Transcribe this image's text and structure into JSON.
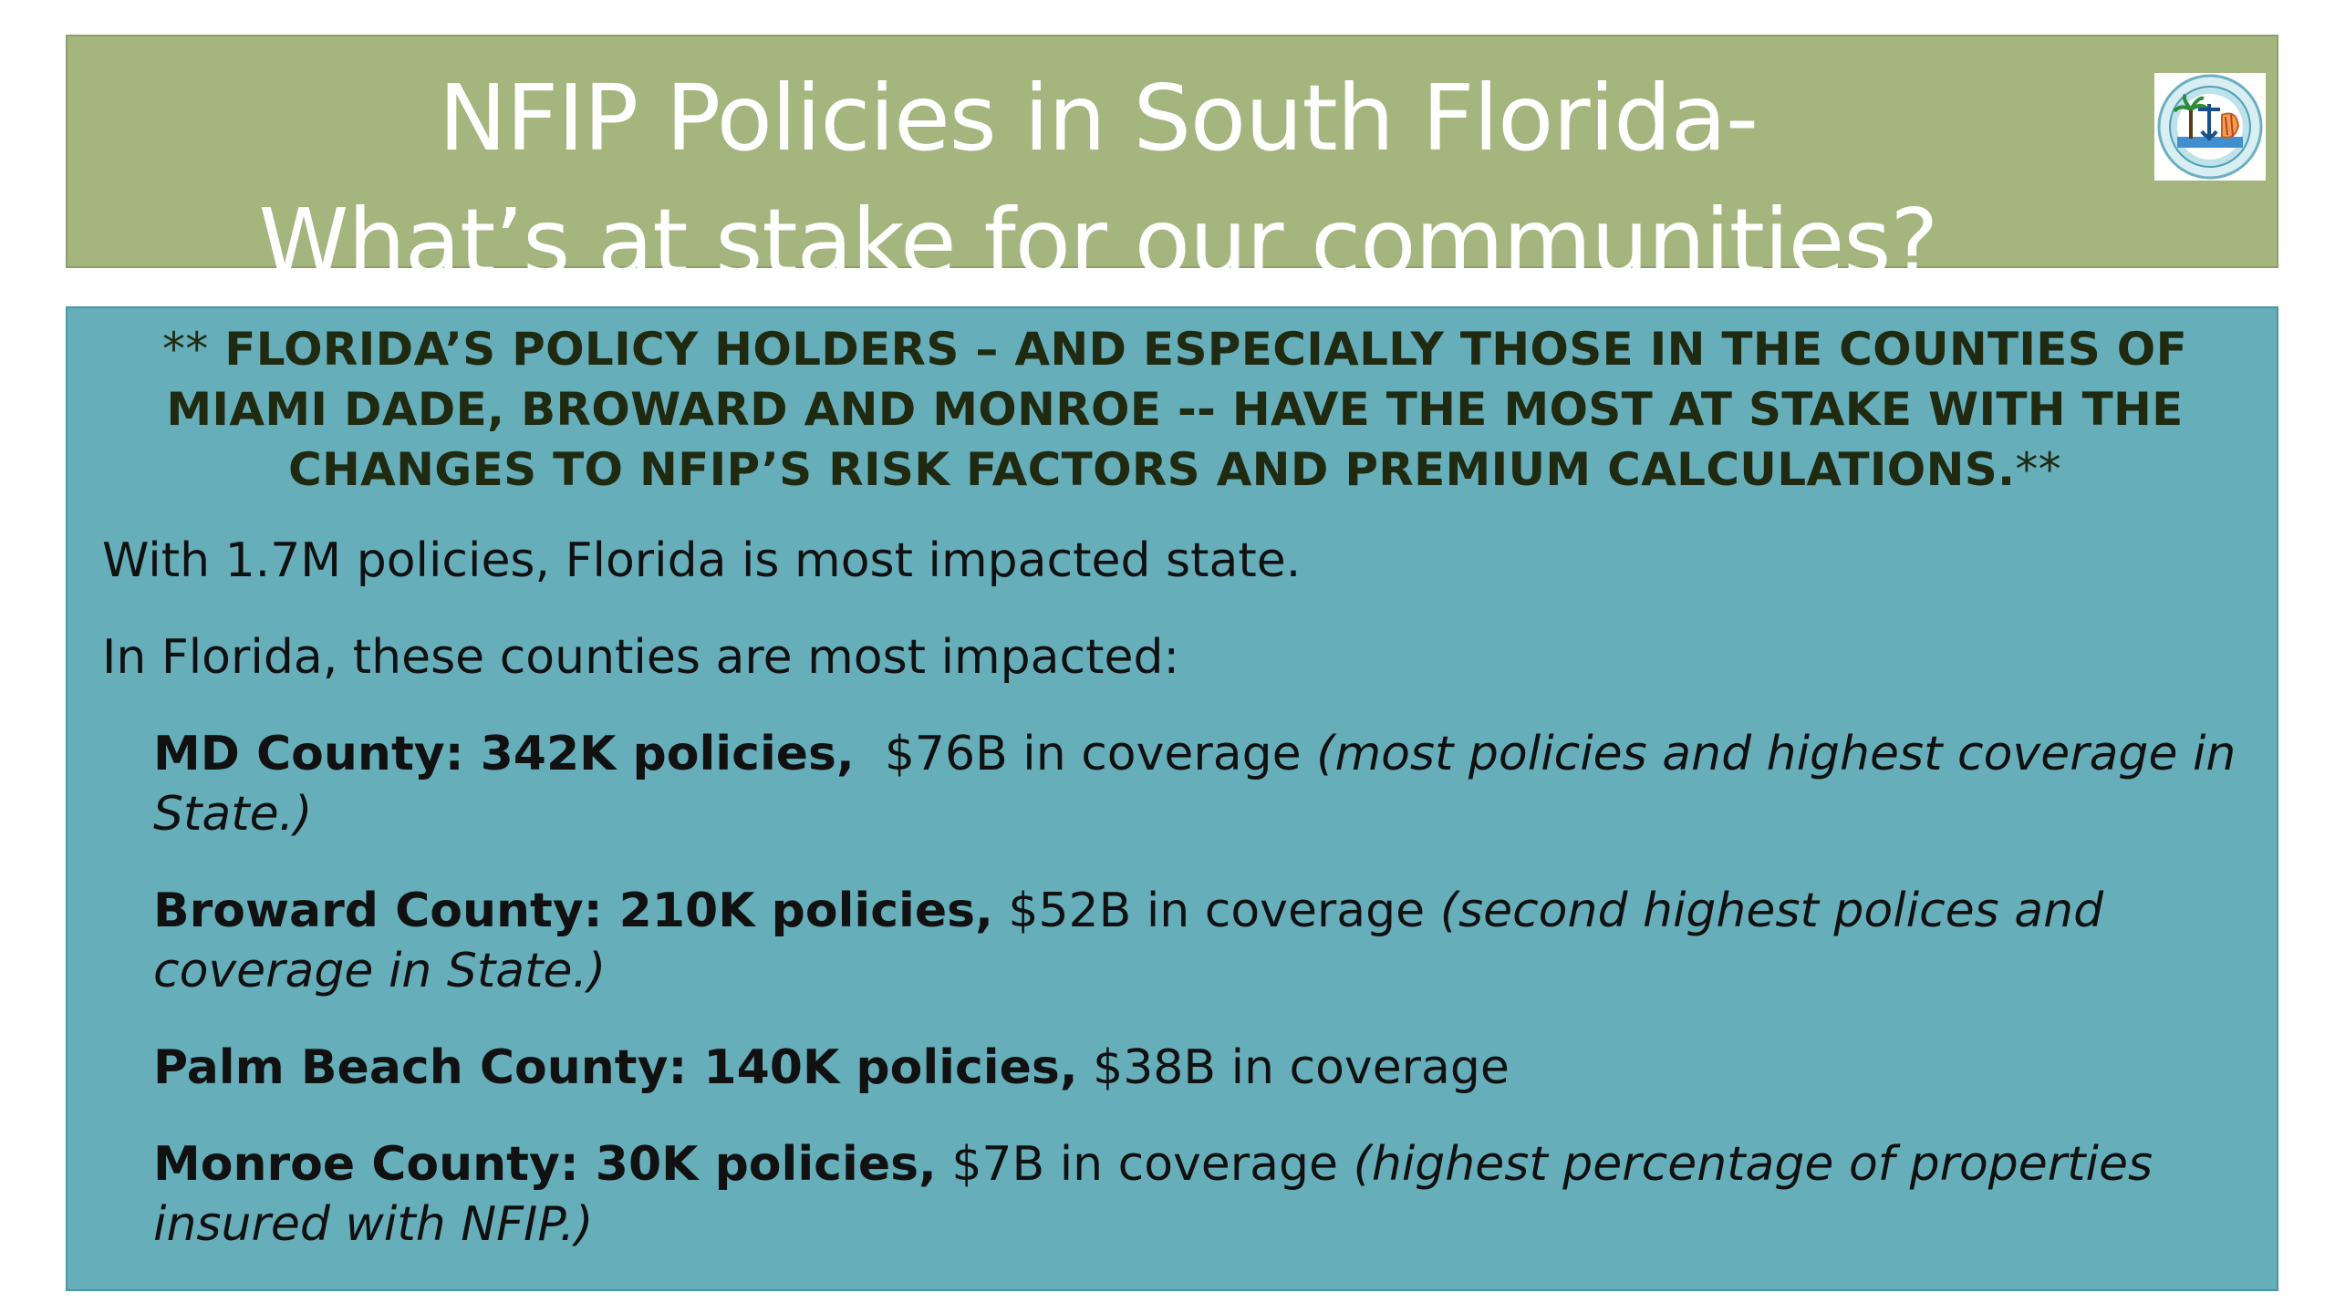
{
  "title": {
    "line1": "NFIP Policies in South Florida-",
    "line2": "What’s at stake for our communities?"
  },
  "logo": {
    "icon": "county-seal-logo-icon"
  },
  "headline": {
    "stars_open": "**",
    "text": "FLORIDA’S POLICY HOLDERS – AND ESPECIALLY THOSE IN THE COUNTIES OF MIAMI DADE, BROWARD AND MONROE -- HAVE THE MOST AT STAKE WITH THE CHANGES TO NFIP’S RISK FACTORS AND PREMIUM CALCULATIONS.",
    "stars_close": "**"
  },
  "paragraphs": {
    "state": "With 1.7M policies, Florida is most impacted state.",
    "counties_intro": "In Florida, these counties are most impacted:"
  },
  "counties": [
    {
      "name_policies": "MD County: 342K policies,",
      "coverage": "  $76B in coverage ",
      "note": "(most policies and highest coverage in State.)"
    },
    {
      "name_policies": "Broward County: 210K policies,",
      "coverage": " $52B in coverage ",
      "note": "(second highest polices and coverage in State.)"
    },
    {
      "name_policies": "Palm Beach County: 140K policies,",
      "coverage": " $38B in coverage",
      "note": ""
    },
    {
      "name_policies": "Monroe County: 30K policies,",
      "coverage": " $7B in coverage ",
      "note": "(highest percentage of properties insured with NFIP.)"
    }
  ],
  "colors": {
    "title_bg": "#a5b57e",
    "content_bg": "#67aebb",
    "headline_text": "#1f2a10"
  }
}
